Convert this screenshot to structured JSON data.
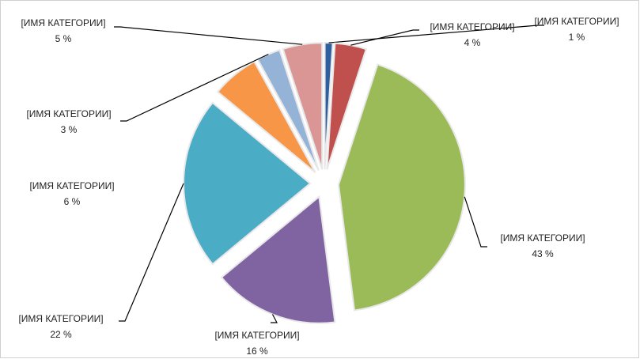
{
  "chart_data": {
    "type": "pie",
    "categories": [
      "[ИМЯ КАТЕГОРИИ]",
      "[ИМЯ КАТЕГОРИИ]",
      "[ИМЯ КАТЕГОРИИ]",
      "[ИМЯ КАТЕГОРИИ]",
      "[ИМЯ КАТЕГОРИИ]",
      "[ИМЯ КАТЕГОРИИ]",
      "[ИМЯ КАТЕГОРИИ]",
      "[ИМЯ КАТЕГОРИИ]"
    ],
    "values": [
      1,
      4,
      43,
      16,
      22,
      6,
      3,
      5
    ],
    "value_labels": [
      "1 %",
      "4 %",
      "43 %",
      "16 %",
      "22 %",
      "6 %",
      "3 %",
      "5 %"
    ],
    "colors": [
      "#2e5f9e",
      "#c0504d",
      "#9bbb59",
      "#8064a2",
      "#4bacc6",
      "#f79646",
      "#95b3d7",
      "#d99694"
    ]
  }
}
